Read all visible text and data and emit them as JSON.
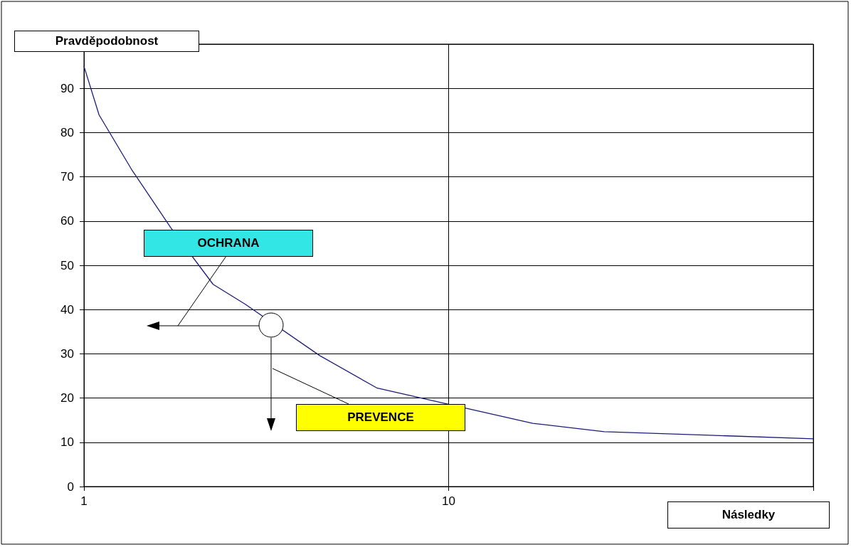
{
  "chart_data": {
    "type": "line",
    "xlabel": "Následky",
    "ylabel": "Pravděpodobnost",
    "x": [
      1,
      1.1,
      1.35,
      1.73,
      2.26,
      2.77,
      4.43,
      6.35,
      10,
      17,
      26.7,
      52,
      100
    ],
    "series": [
      {
        "color": "#1c1c78",
        "values": [
          95,
          84,
          71.7,
          58.5,
          45.7,
          41.2,
          29.6,
          22.3,
          18.6,
          14.3,
          12.4,
          11.6,
          10.8
        ]
      }
    ],
    "log": "x",
    "xlim": [
      1,
      100
    ],
    "xticks": [
      1,
      10,
      {
        "value": 100,
        "label": null
      }
    ],
    "ylim": [
      0,
      100
    ],
    "yticks": [
      0,
      10,
      20,
      30,
      40,
      50,
      60,
      70,
      80,
      90,
      {
        "value": 100,
        "label": null
      }
    ],
    "grid": true,
    "marker": "none",
    "line_style": "solid",
    "annotations": [
      "OCHRANA",
      "PREVENCE"
    ]
  }
}
